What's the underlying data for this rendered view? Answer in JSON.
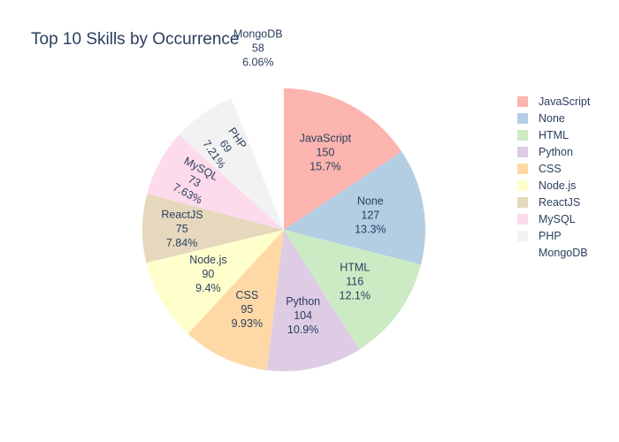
{
  "chart_data": {
    "type": "pie",
    "title": "Top 10 Skills by Occurrence",
    "categories": [
      "JavaScript",
      "None",
      "HTML",
      "Python",
      "CSS",
      "Node.js",
      "ReactJS",
      "MySQL",
      "PHP",
      "MongoDB"
    ],
    "values": [
      150,
      127,
      116,
      104,
      95,
      90,
      75,
      73,
      69,
      58
    ],
    "percent_labels": [
      "15.7%",
      "13.3%",
      "12.1%",
      "10.9%",
      "9.93%",
      "9.4%",
      "7.84%",
      "7.63%",
      "7.21%",
      "6.06%"
    ],
    "colors": [
      "#fbb4ae",
      "#b3cde3",
      "#ccebc5",
      "#decbe4",
      "#fed9a6",
      "#ffffcc",
      "#e5d8bd",
      "#fddaec",
      "#f2f2f2",
      "#ffffff"
    ],
    "pulled_slice": "MongoDB",
    "legend_position": "right"
  }
}
